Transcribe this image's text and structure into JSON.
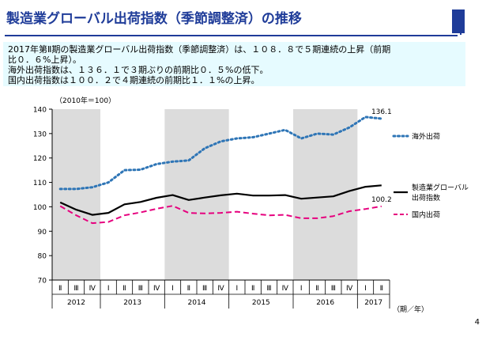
{
  "header": {
    "title": "製造業グローバル出荷指数（季節調整済）の推移"
  },
  "summary": {
    "lines": [
      "2017年第Ⅱ期の製造業グローバル出荷指数（季節調整済）は、１０８．８で５期連続の上昇（前期",
      "比０．６%上昇）。",
      "海外出荷指数は、１３６．１で３期ぶりの前期比０．５%の低下。",
      "国内出荷指数は１００．２で４期連続の前期比１．１%の上昇。"
    ]
  },
  "page_number": "4",
  "colors": {
    "title": "#1f3c99",
    "summary_bg": "#e6fbff",
    "band": "#dcdcdc",
    "overseas": "#2e75b6",
    "global": "#000000",
    "domestic": "#e6007e"
  },
  "chart_data": {
    "type": "line",
    "unit_label": "（2010年＝100）",
    "x_unit_label": "（期／年）",
    "ylim": [
      70,
      140
    ],
    "yticks": [
      70,
      80,
      90,
      100,
      110,
      120,
      130,
      140
    ],
    "grid": false,
    "shaded_years": [
      "2012",
      "2014",
      "2016"
    ],
    "x": [
      "Ⅱ",
      "Ⅲ",
      "Ⅳ",
      "Ⅰ",
      "Ⅱ",
      "Ⅲ",
      "Ⅳ",
      "Ⅰ",
      "Ⅱ",
      "Ⅲ",
      "Ⅳ",
      "Ⅰ",
      "Ⅱ",
      "Ⅲ",
      "Ⅳ",
      "Ⅰ",
      "Ⅱ",
      "Ⅲ",
      "Ⅳ",
      "Ⅰ",
      "Ⅱ"
    ],
    "years": [
      {
        "label": "2012",
        "start": 0,
        "end": 2
      },
      {
        "label": "2013",
        "start": 3,
        "end": 6
      },
      {
        "label": "2014",
        "start": 7,
        "end": 10
      },
      {
        "label": "2015",
        "start": 11,
        "end": 14
      },
      {
        "label": "2016",
        "start": 15,
        "end": 18
      },
      {
        "label": "2017",
        "start": 19,
        "end": 20
      }
    ],
    "series": [
      {
        "name": "海外出荷",
        "style": "dotted",
        "color": "#2e75b6",
        "values": [
          107.3,
          107.3,
          108.0,
          110.0,
          115.0,
          115.2,
          117.5,
          118.5,
          119.0,
          124.0,
          126.8,
          128.0,
          128.5,
          130.0,
          131.5,
          128.0,
          130.0,
          129.6,
          132.5,
          136.8,
          136.1
        ]
      },
      {
        "name": "製造業グローバル出荷指数",
        "legend_lines": [
          "製造業グローバル",
          "出荷指数"
        ],
        "style": "solid",
        "color": "#000000",
        "values": [
          101.8,
          98.8,
          96.7,
          97.5,
          101.0,
          102.0,
          103.7,
          104.8,
          102.8,
          103.8,
          104.7,
          105.4,
          104.6,
          104.6,
          104.8,
          103.3,
          103.8,
          104.3,
          106.5,
          108.2,
          108.8
        ]
      },
      {
        "name": "国内出荷",
        "style": "dashed",
        "color": "#e6007e",
        "values": [
          100.3,
          96.5,
          93.3,
          93.8,
          96.5,
          97.7,
          99.2,
          100.4,
          97.5,
          97.3,
          97.5,
          98.0,
          97.2,
          96.5,
          96.7,
          95.3,
          95.3,
          96.2,
          98.2,
          99.1,
          100.2
        ]
      }
    ],
    "annotations": [
      {
        "series": 0,
        "index": 20,
        "text": "136.1"
      },
      {
        "series": 2,
        "index": 20,
        "text": "100.2"
      }
    ]
  }
}
